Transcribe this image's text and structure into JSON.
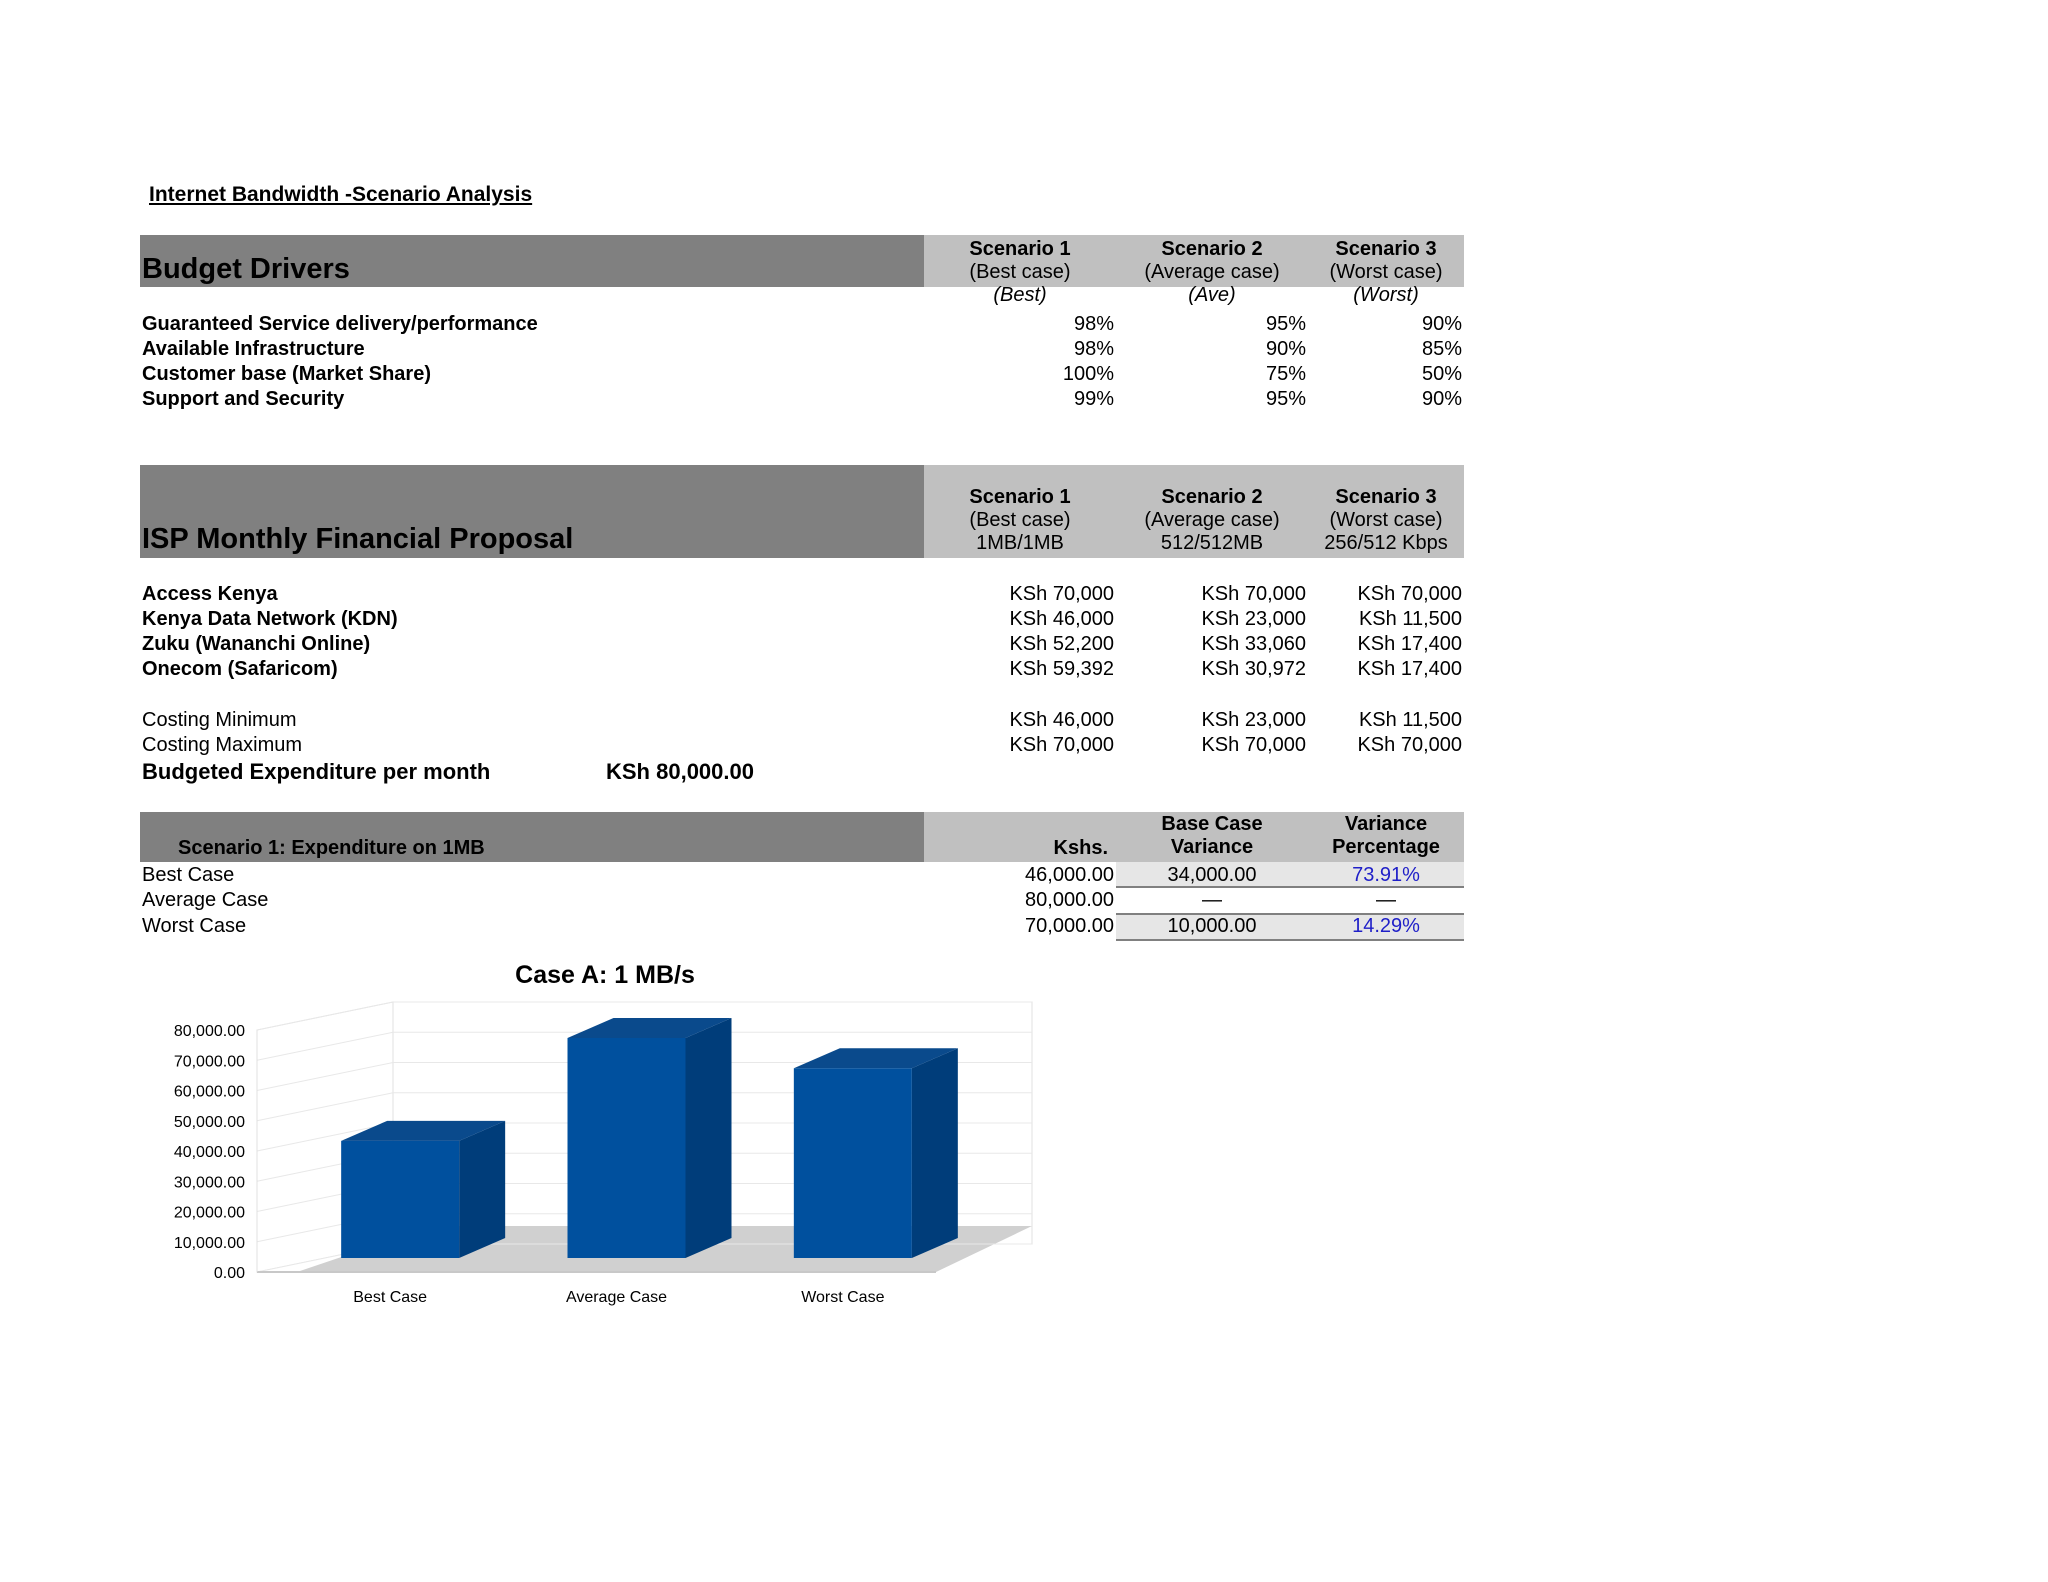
{
  "doc_title": "Internet Bandwidth -Scenario Analysis",
  "budget": {
    "title": "Budget Drivers",
    "columns": [
      {
        "name": "Scenario 1",
        "case": "(Best case)",
        "tag": "(Best)"
      },
      {
        "name": "Scenario 2",
        "case": "(Average case)",
        "tag": "(Ave)"
      },
      {
        "name": "Scenario 3",
        "case": "(Worst case)",
        "tag": "(Worst)"
      }
    ],
    "rows": [
      {
        "label": "Guaranteed Service delivery/performance",
        "values": [
          "98%",
          "95%",
          "90%"
        ]
      },
      {
        "label": "Available Infrastructure",
        "values": [
          "98%",
          "90%",
          "85%"
        ]
      },
      {
        "label": "Customer base (Market Share)",
        "values": [
          "100%",
          "75%",
          "50%"
        ]
      },
      {
        "label": "Support and Security",
        "values": [
          "99%",
          "95%",
          "90%"
        ]
      }
    ]
  },
  "proposal": {
    "title": "ISP Monthly Financial Proposal",
    "columns": [
      {
        "name": "Scenario 1",
        "case": "(Best case)",
        "speed": "1MB/1MB"
      },
      {
        "name": "Scenario 2",
        "case": "(Average case)",
        "speed": "512/512MB"
      },
      {
        "name": "Scenario 3",
        "case": "(Worst case)",
        "speed": "256/512 Kbps"
      }
    ],
    "rows": [
      {
        "label": "Access Kenya",
        "values": [
          "KSh 70,000",
          "KSh 70,000",
          "KSh 70,000"
        ]
      },
      {
        "label": "Kenya Data Network (KDN)",
        "values": [
          "KSh 46,000",
          "KSh 23,000",
          "KSh 11,500"
        ]
      },
      {
        "label": "Zuku (Wananchi Online)",
        "values": [
          "KSh 52,200",
          "KSh 33,060",
          "KSh 17,400"
        ]
      },
      {
        "label": "Onecom (Safaricom)",
        "values": [
          "KSh 59,392",
          "KSh 30,972",
          "KSh 17,400"
        ]
      }
    ],
    "costing": [
      {
        "label": "Costing Minimum",
        "values": [
          "KSh 46,000",
          "KSh 23,000",
          "KSh 11,500"
        ]
      },
      {
        "label": "Costing Maximum",
        "values": [
          "KSh 70,000",
          "KSh 70,000",
          "KSh 70,000"
        ]
      }
    ],
    "budgeted_label": "Budgeted Expenditure per month",
    "budgeted_value": "KSh 80,000.00"
  },
  "expenditure": {
    "title": "Scenario 1:  Expenditure on 1MB",
    "col_kshs": "Kshs.",
    "col_variance_1": "Base Case",
    "col_variance_2": "Variance",
    "col_pct_1": "Variance",
    "col_pct_2": "Percentage",
    "rows": [
      {
        "label": "Best Case",
        "kshs": "46,000.00",
        "variance": "34,000.00",
        "pct": "73.91%"
      },
      {
        "label": "Average Case",
        "kshs": "80,000.00",
        "variance": "—",
        "pct": "—"
      },
      {
        "label": "Worst Case",
        "kshs": "70,000.00",
        "variance": "10,000.00",
        "pct": "14.29%"
      }
    ]
  },
  "chart_data": {
    "type": "bar",
    "title": "Case A: 1 MB/s",
    "categories": [
      "Best Case",
      "Average Case",
      "Worst Case"
    ],
    "values": [
      46000,
      80000,
      70000
    ],
    "ylim": [
      0,
      80000
    ],
    "yticks": [
      "0.00",
      "10,000.00",
      "20,000.00",
      "30,000.00",
      "40,000.00",
      "50,000.00",
      "60,000.00",
      "70,000.00",
      "80,000.00"
    ],
    "bar_color": "#00509e",
    "grid": true,
    "legend": "none"
  }
}
